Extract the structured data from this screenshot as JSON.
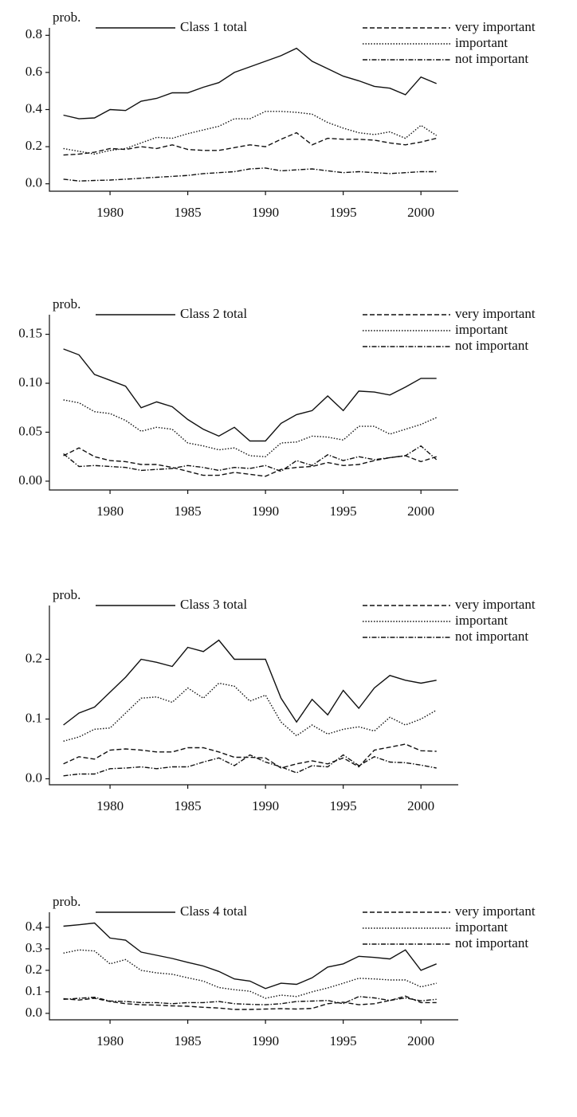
{
  "chart_data": [
    {
      "type": "line",
      "ylabel": "prob.",
      "x": [
        1977,
        1978,
        1979,
        1980,
        1981,
        1982,
        1983,
        1984,
        1985,
        1986,
        1987,
        1988,
        1989,
        1990,
        1991,
        1992,
        1993,
        1994,
        1995,
        1996,
        1997,
        1998,
        1999,
        2000,
        2001
      ],
      "xlim": [
        1976.1,
        2002.4
      ],
      "xticks": [
        1980,
        1985,
        1990,
        1995,
        2000
      ],
      "ylim": [
        -0.04,
        0.84
      ],
      "yticks": [
        {
          "value": 0,
          "label": "0.0"
        },
        0.2,
        0.4,
        0.6,
        0.8
      ],
      "series": [
        {
          "name": "Class 1 total",
          "color": "#111111",
          "line_style": "solid",
          "values": [
            0.37,
            0.35,
            0.355,
            0.4,
            0.395,
            0.445,
            0.46,
            0.49,
            0.49,
            0.52,
            0.545,
            0.6,
            0.63,
            0.66,
            0.69,
            0.73,
            0.66,
            0.62,
            0.58,
            0.555,
            0.525,
            0.515,
            0.48,
            0.575,
            0.54
          ]
        },
        {
          "name": "very important",
          "color": "#111111",
          "line_style": "dashed",
          "values": [
            0.155,
            0.16,
            0.17,
            0.19,
            0.185,
            0.2,
            0.19,
            0.21,
            0.185,
            0.18,
            0.18,
            0.195,
            0.21,
            0.2,
            0.24,
            0.275,
            0.21,
            0.245,
            0.24,
            0.24,
            0.235,
            0.22,
            0.21,
            0.225,
            0.245
          ]
        },
        {
          "name": "important",
          "color": "#111111",
          "line_style": "dotted",
          "values": [
            0.19,
            0.175,
            0.16,
            0.18,
            0.19,
            0.22,
            0.25,
            0.245,
            0.27,
            0.29,
            0.31,
            0.35,
            0.35,
            0.39,
            0.39,
            0.385,
            0.375,
            0.33,
            0.3,
            0.275,
            0.265,
            0.28,
            0.245,
            0.315,
            0.26
          ]
        },
        {
          "name": "not important",
          "color": "#111111",
          "line_style": "dashdot",
          "values": [
            0.025,
            0.015,
            0.018,
            0.02,
            0.025,
            0.03,
            0.035,
            0.04,
            0.045,
            0.055,
            0.06,
            0.065,
            0.08,
            0.085,
            0.07,
            0.075,
            0.08,
            0.07,
            0.06,
            0.065,
            0.06,
            0.055,
            0.06,
            0.065,
            0.065
          ]
        }
      ]
    },
    {
      "type": "line",
      "ylabel": "prob.",
      "x": [
        1977,
        1978,
        1979,
        1980,
        1981,
        1982,
        1983,
        1984,
        1985,
        1986,
        1987,
        1988,
        1989,
        1990,
        1991,
        1992,
        1993,
        1994,
        1995,
        1996,
        1997,
        1998,
        1999,
        2000,
        2001
      ],
      "xlim": [
        1976.1,
        2002.4
      ],
      "xticks": [
        1980,
        1985,
        1990,
        1995,
        2000
      ],
      "ylim": [
        -0.009,
        0.17
      ],
      "yticks": [
        {
          "value": 0,
          "label": "0.00"
        },
        0.05,
        {
          "value": 0.1,
          "label": "0.10"
        },
        0.15
      ],
      "series": [
        {
          "name": "Class 2 total",
          "color": "#111111",
          "line_style": "solid",
          "values": [
            0.135,
            0.129,
            0.109,
            0.103,
            0.097,
            0.075,
            0.081,
            0.076,
            0.063,
            0.053,
            0.046,
            0.055,
            0.041,
            0.041,
            0.059,
            0.068,
            0.072,
            0.087,
            0.072,
            0.092,
            0.091,
            0.088,
            0.096,
            0.105,
            0.105
          ]
        },
        {
          "name": "very important",
          "color": "#111111",
          "line_style": "dashed",
          "values": [
            0.026,
            0.034,
            0.025,
            0.021,
            0.02,
            0.017,
            0.017,
            0.014,
            0.01,
            0.006,
            0.006,
            0.009,
            0.007,
            0.005,
            0.012,
            0.014,
            0.015,
            0.019,
            0.016,
            0.017,
            0.021,
            0.024,
            0.026,
            0.02,
            0.025
          ]
        },
        {
          "name": "important",
          "color": "#111111",
          "line_style": "dotted",
          "values": [
            0.083,
            0.08,
            0.071,
            0.069,
            0.062,
            0.051,
            0.055,
            0.053,
            0.039,
            0.036,
            0.032,
            0.034,
            0.026,
            0.025,
            0.039,
            0.04,
            0.046,
            0.045,
            0.042,
            0.056,
            0.056,
            0.048,
            0.053,
            0.058,
            0.065
          ]
        },
        {
          "name": "not important",
          "color": "#111111",
          "line_style": "dashdot",
          "values": [
            0.028,
            0.015,
            0.016,
            0.015,
            0.014,
            0.011,
            0.012,
            0.013,
            0.016,
            0.014,
            0.011,
            0.014,
            0.013,
            0.016,
            0.01,
            0.021,
            0.016,
            0.027,
            0.021,
            0.025,
            0.022,
            0.024,
            0.026,
            0.036,
            0.022
          ]
        }
      ]
    },
    {
      "type": "line",
      "ylabel": "prob.",
      "x": [
        1977,
        1978,
        1979,
        1980,
        1981,
        1982,
        1983,
        1984,
        1985,
        1986,
        1987,
        1988,
        1989,
        1990,
        1991,
        1992,
        1993,
        1994,
        1995,
        1996,
        1997,
        1998,
        1999,
        2000,
        2001
      ],
      "xlim": [
        1976.1,
        2002.4
      ],
      "xticks": [
        1980,
        1985,
        1990,
        1995,
        2000
      ],
      "ylim": [
        -0.01,
        0.29
      ],
      "yticks": [
        {
          "value": 0,
          "label": "0.0"
        },
        0.1,
        0.2
      ],
      "series": [
        {
          "name": "Class 3 total",
          "color": "#111111",
          "line_style": "solid",
          "values": [
            0.09,
            0.11,
            0.12,
            0.145,
            0.17,
            0.2,
            0.195,
            0.188,
            0.22,
            0.213,
            0.232,
            0.2,
            0.2,
            0.2,
            0.135,
            0.095,
            0.133,
            0.107,
            0.148,
            0.118,
            0.152,
            0.173,
            0.165,
            0.16,
            0.165
          ]
        },
        {
          "name": "very important",
          "color": "#111111",
          "line_style": "dashed",
          "values": [
            0.025,
            0.037,
            0.033,
            0.048,
            0.05,
            0.048,
            0.045,
            0.045,
            0.052,
            0.052,
            0.045,
            0.036,
            0.036,
            0.035,
            0.018,
            0.025,
            0.03,
            0.025,
            0.035,
            0.02,
            0.048,
            0.053,
            0.058,
            0.047,
            0.046
          ]
        },
        {
          "name": "important",
          "color": "#111111",
          "line_style": "dotted",
          "values": [
            0.063,
            0.07,
            0.083,
            0.085,
            0.11,
            0.135,
            0.137,
            0.128,
            0.152,
            0.135,
            0.16,
            0.155,
            0.13,
            0.14,
            0.095,
            0.072,
            0.09,
            0.075,
            0.083,
            0.087,
            0.08,
            0.103,
            0.09,
            0.1,
            0.115
          ]
        },
        {
          "name": "not important",
          "color": "#111111",
          "line_style": "dashdot",
          "values": [
            0.005,
            0.008,
            0.008,
            0.017,
            0.018,
            0.02,
            0.017,
            0.02,
            0.02,
            0.028,
            0.035,
            0.022,
            0.04,
            0.028,
            0.02,
            0.01,
            0.022,
            0.02,
            0.04,
            0.022,
            0.037,
            0.028,
            0.027,
            0.023,
            0.018
          ]
        }
      ]
    },
    {
      "type": "line",
      "ylabel": "prob.",
      "x": [
        1977,
        1978,
        1979,
        1980,
        1981,
        1982,
        1983,
        1984,
        1985,
        1986,
        1987,
        1988,
        1989,
        1990,
        1991,
        1992,
        1993,
        1994,
        1995,
        1996,
        1997,
        1998,
        1999,
        2000,
        2001
      ],
      "xlim": [
        1976.1,
        2002.4
      ],
      "xticks": [
        1980,
        1985,
        1990,
        1995,
        2000
      ],
      "ylim": [
        -0.03,
        0.47
      ],
      "yticks": [
        {
          "value": 0,
          "label": "0.0"
        },
        0.1,
        0.2,
        0.3,
        0.4
      ],
      "series": [
        {
          "name": "Class 4 total",
          "color": "#111111",
          "line_style": "solid",
          "values": [
            0.405,
            0.412,
            0.42,
            0.35,
            0.34,
            0.285,
            0.27,
            0.255,
            0.237,
            0.22,
            0.195,
            0.16,
            0.15,
            0.115,
            0.14,
            0.135,
            0.165,
            0.215,
            0.23,
            0.265,
            0.26,
            0.253,
            0.295,
            0.2,
            0.23
          ]
        },
        {
          "name": "very important",
          "color": "#111111",
          "line_style": "dashed",
          "values": [
            0.068,
            0.062,
            0.07,
            0.055,
            0.045,
            0.04,
            0.038,
            0.035,
            0.033,
            0.028,
            0.025,
            0.018,
            0.018,
            0.02,
            0.022,
            0.02,
            0.023,
            0.045,
            0.052,
            0.04,
            0.045,
            0.06,
            0.08,
            0.05,
            0.05
          ]
        },
        {
          "name": "important",
          "color": "#111111",
          "line_style": "dotted",
          "values": [
            0.28,
            0.295,
            0.29,
            0.23,
            0.25,
            0.2,
            0.188,
            0.182,
            0.165,
            0.15,
            0.12,
            0.11,
            0.103,
            0.07,
            0.085,
            0.078,
            0.1,
            0.118,
            0.14,
            0.163,
            0.16,
            0.155,
            0.155,
            0.123,
            0.14
          ]
        },
        {
          "name": "not important",
          "color": "#111111",
          "line_style": "dashdot",
          "values": [
            0.065,
            0.07,
            0.075,
            0.057,
            0.055,
            0.05,
            0.05,
            0.045,
            0.05,
            0.05,
            0.055,
            0.045,
            0.042,
            0.04,
            0.045,
            0.055,
            0.057,
            0.06,
            0.045,
            0.078,
            0.072,
            0.06,
            0.072,
            0.058,
            0.065
          ]
        }
      ]
    }
  ]
}
